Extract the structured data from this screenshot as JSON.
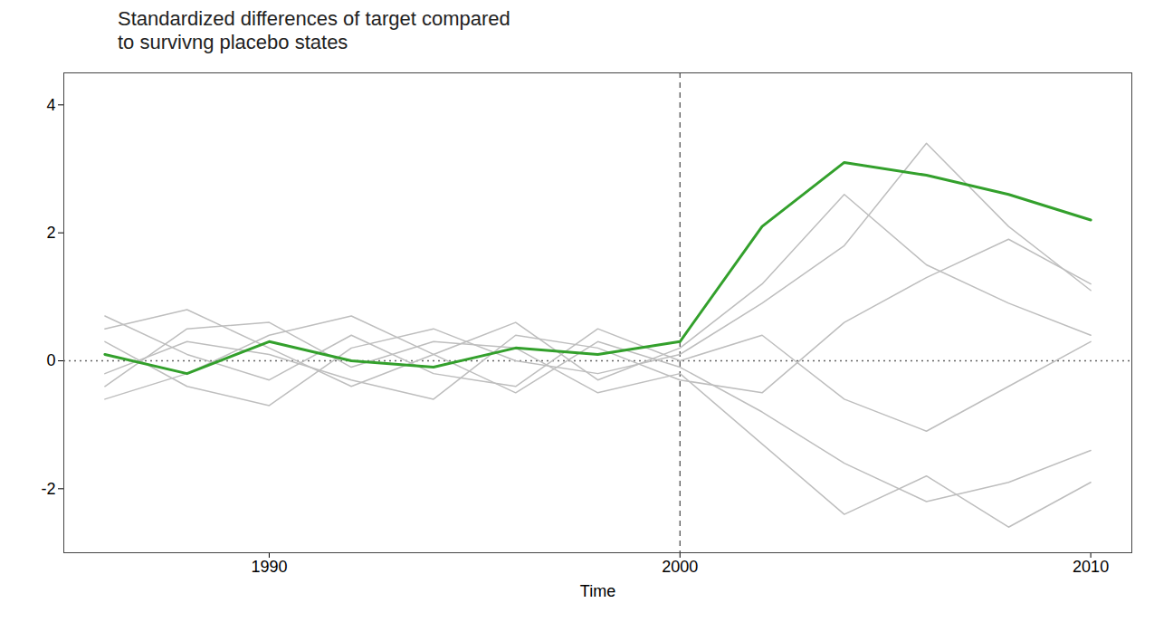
{
  "chart_data": {
    "type": "line",
    "title": "Standardized differences of target compared\n to survivng placebo states",
    "x_label": "Time",
    "x": [
      1986,
      1988,
      1990,
      1992,
      1994,
      1996,
      1998,
      2000,
      2002,
      2004,
      2006,
      2008,
      2010
    ],
    "xlim": [
      1985,
      2011
    ],
    "xticks": [
      1990,
      2000,
      2010
    ],
    "ylim": [
      -3,
      4.5
    ],
    "yticks": [
      -2,
      0,
      2,
      4
    ],
    "grid": false,
    "vlines": [
      2000
    ],
    "hlines": [
      0
    ],
    "series": [
      {
        "color": "#bebebe",
        "values": [
          0.5,
          0.8,
          0.2,
          -0.4,
          0.1,
          0.6,
          -0.3,
          0.2,
          1.2,
          2.6,
          1.5,
          0.9,
          0.4
        ]
      },
      {
        "color": "#bebebe",
        "values": [
          -0.6,
          -0.2,
          0.4,
          0.7,
          0.1,
          -0.5,
          0.3,
          -0.1,
          -0.8,
          -1.6,
          -2.2,
          -1.9,
          -1.4
        ]
      },
      {
        "color": "#bebebe",
        "values": [
          0.3,
          -0.4,
          -0.7,
          0.2,
          0.5,
          0.0,
          -0.2,
          0.1,
          0.9,
          1.8,
          3.4,
          2.1,
          1.1
        ]
      },
      {
        "color": "#bebebe",
        "values": [
          -0.2,
          0.3,
          0.1,
          -0.3,
          -0.6,
          0.4,
          0.2,
          -0.3,
          -0.5,
          0.6,
          1.3,
          1.9,
          1.2
        ]
      },
      {
        "color": "#bebebe",
        "values": [
          0.7,
          0.1,
          -0.3,
          0.4,
          -0.2,
          -0.4,
          0.5,
          0.0,
          0.4,
          -0.6,
          -1.1,
          -0.4,
          0.3
        ]
      },
      {
        "color": "#bebebe",
        "values": [
          -0.4,
          0.5,
          0.6,
          -0.1,
          0.3,
          0.2,
          -0.5,
          -0.2,
          -1.3,
          -2.4,
          -1.8,
          -2.6,
          -1.9
        ]
      },
      {
        "color": "#33a02c",
        "values": [
          0.1,
          -0.2,
          0.3,
          0.0,
          -0.1,
          0.2,
          0.1,
          0.3,
          2.1,
          3.1,
          2.9,
          2.6,
          2.2
        ]
      }
    ]
  }
}
